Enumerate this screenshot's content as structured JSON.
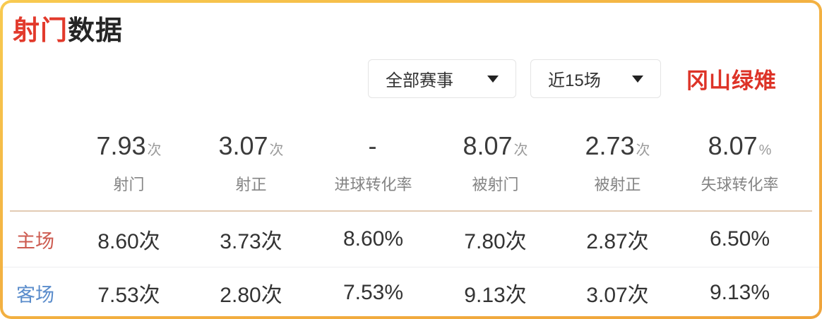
{
  "card": {
    "title_red": "射门",
    "title_dark": "数据",
    "team_name": "冈山绿雉"
  },
  "filters": {
    "competition": {
      "value": "全部赛事"
    },
    "range": {
      "value": "近15场"
    }
  },
  "colors": {
    "border_gold": "#f3b242",
    "title_red": "#e23a2c",
    "team_red": "#dd3327",
    "home_label": "#cd5b50",
    "away_label": "#5a8ccb"
  },
  "stats": {
    "columns": [
      {
        "value": "7.93",
        "suffix": "次",
        "label": "射门"
      },
      {
        "value": "3.07",
        "suffix": "次",
        "label": "射正"
      },
      {
        "value": "-",
        "suffix": "",
        "label": "进球转化率"
      },
      {
        "value": "8.07",
        "suffix": "次",
        "label": "被射门"
      },
      {
        "value": "2.73",
        "suffix": "次",
        "label": "被射正"
      },
      {
        "value": "8.07",
        "suffix": "%",
        "label": "失球转化率"
      }
    ],
    "rows": [
      {
        "label": "主场",
        "values": [
          "8.60次",
          "3.73次",
          "8.60%",
          "7.80次",
          "2.87次",
          "6.50%"
        ]
      },
      {
        "label": "客场",
        "values": [
          "7.53次",
          "2.80次",
          "7.53%",
          "9.13次",
          "3.07次",
          "9.13%"
        ]
      }
    ]
  }
}
